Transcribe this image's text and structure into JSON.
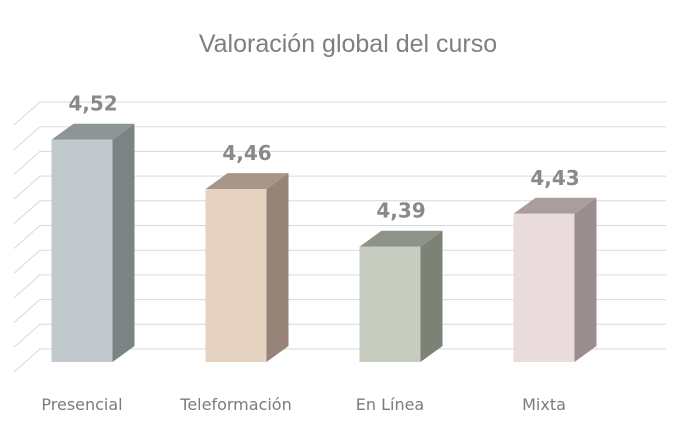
{
  "chart_data": {
    "type": "bar",
    "style": "3d-column",
    "title": "Valoración global del curso",
    "categories": [
      "Presencial",
      "Teleformación",
      "En Línea",
      "Mixta"
    ],
    "values": [
      4.52,
      4.46,
      4.39,
      4.43
    ],
    "data_labels": [
      "4,52",
      "4,46",
      "4,39",
      "4,43"
    ],
    "colors": [
      {
        "front": "#c1c9cc",
        "side": "#7b8384",
        "top": "#8d9596"
      },
      {
        "front": "#e5d2c1",
        "side": "#958477",
        "top": "#a89788"
      },
      {
        "front": "#c6ccc0",
        "side": "#7c8276",
        "top": "#8d9386"
      },
      {
        "front": "#eadcdd",
        "side": "#9a8d8e",
        "top": "#aa9d9e"
      }
    ],
    "ylim": [
      4.25,
      4.55
    ],
    "grid": true,
    "legend": "none"
  }
}
